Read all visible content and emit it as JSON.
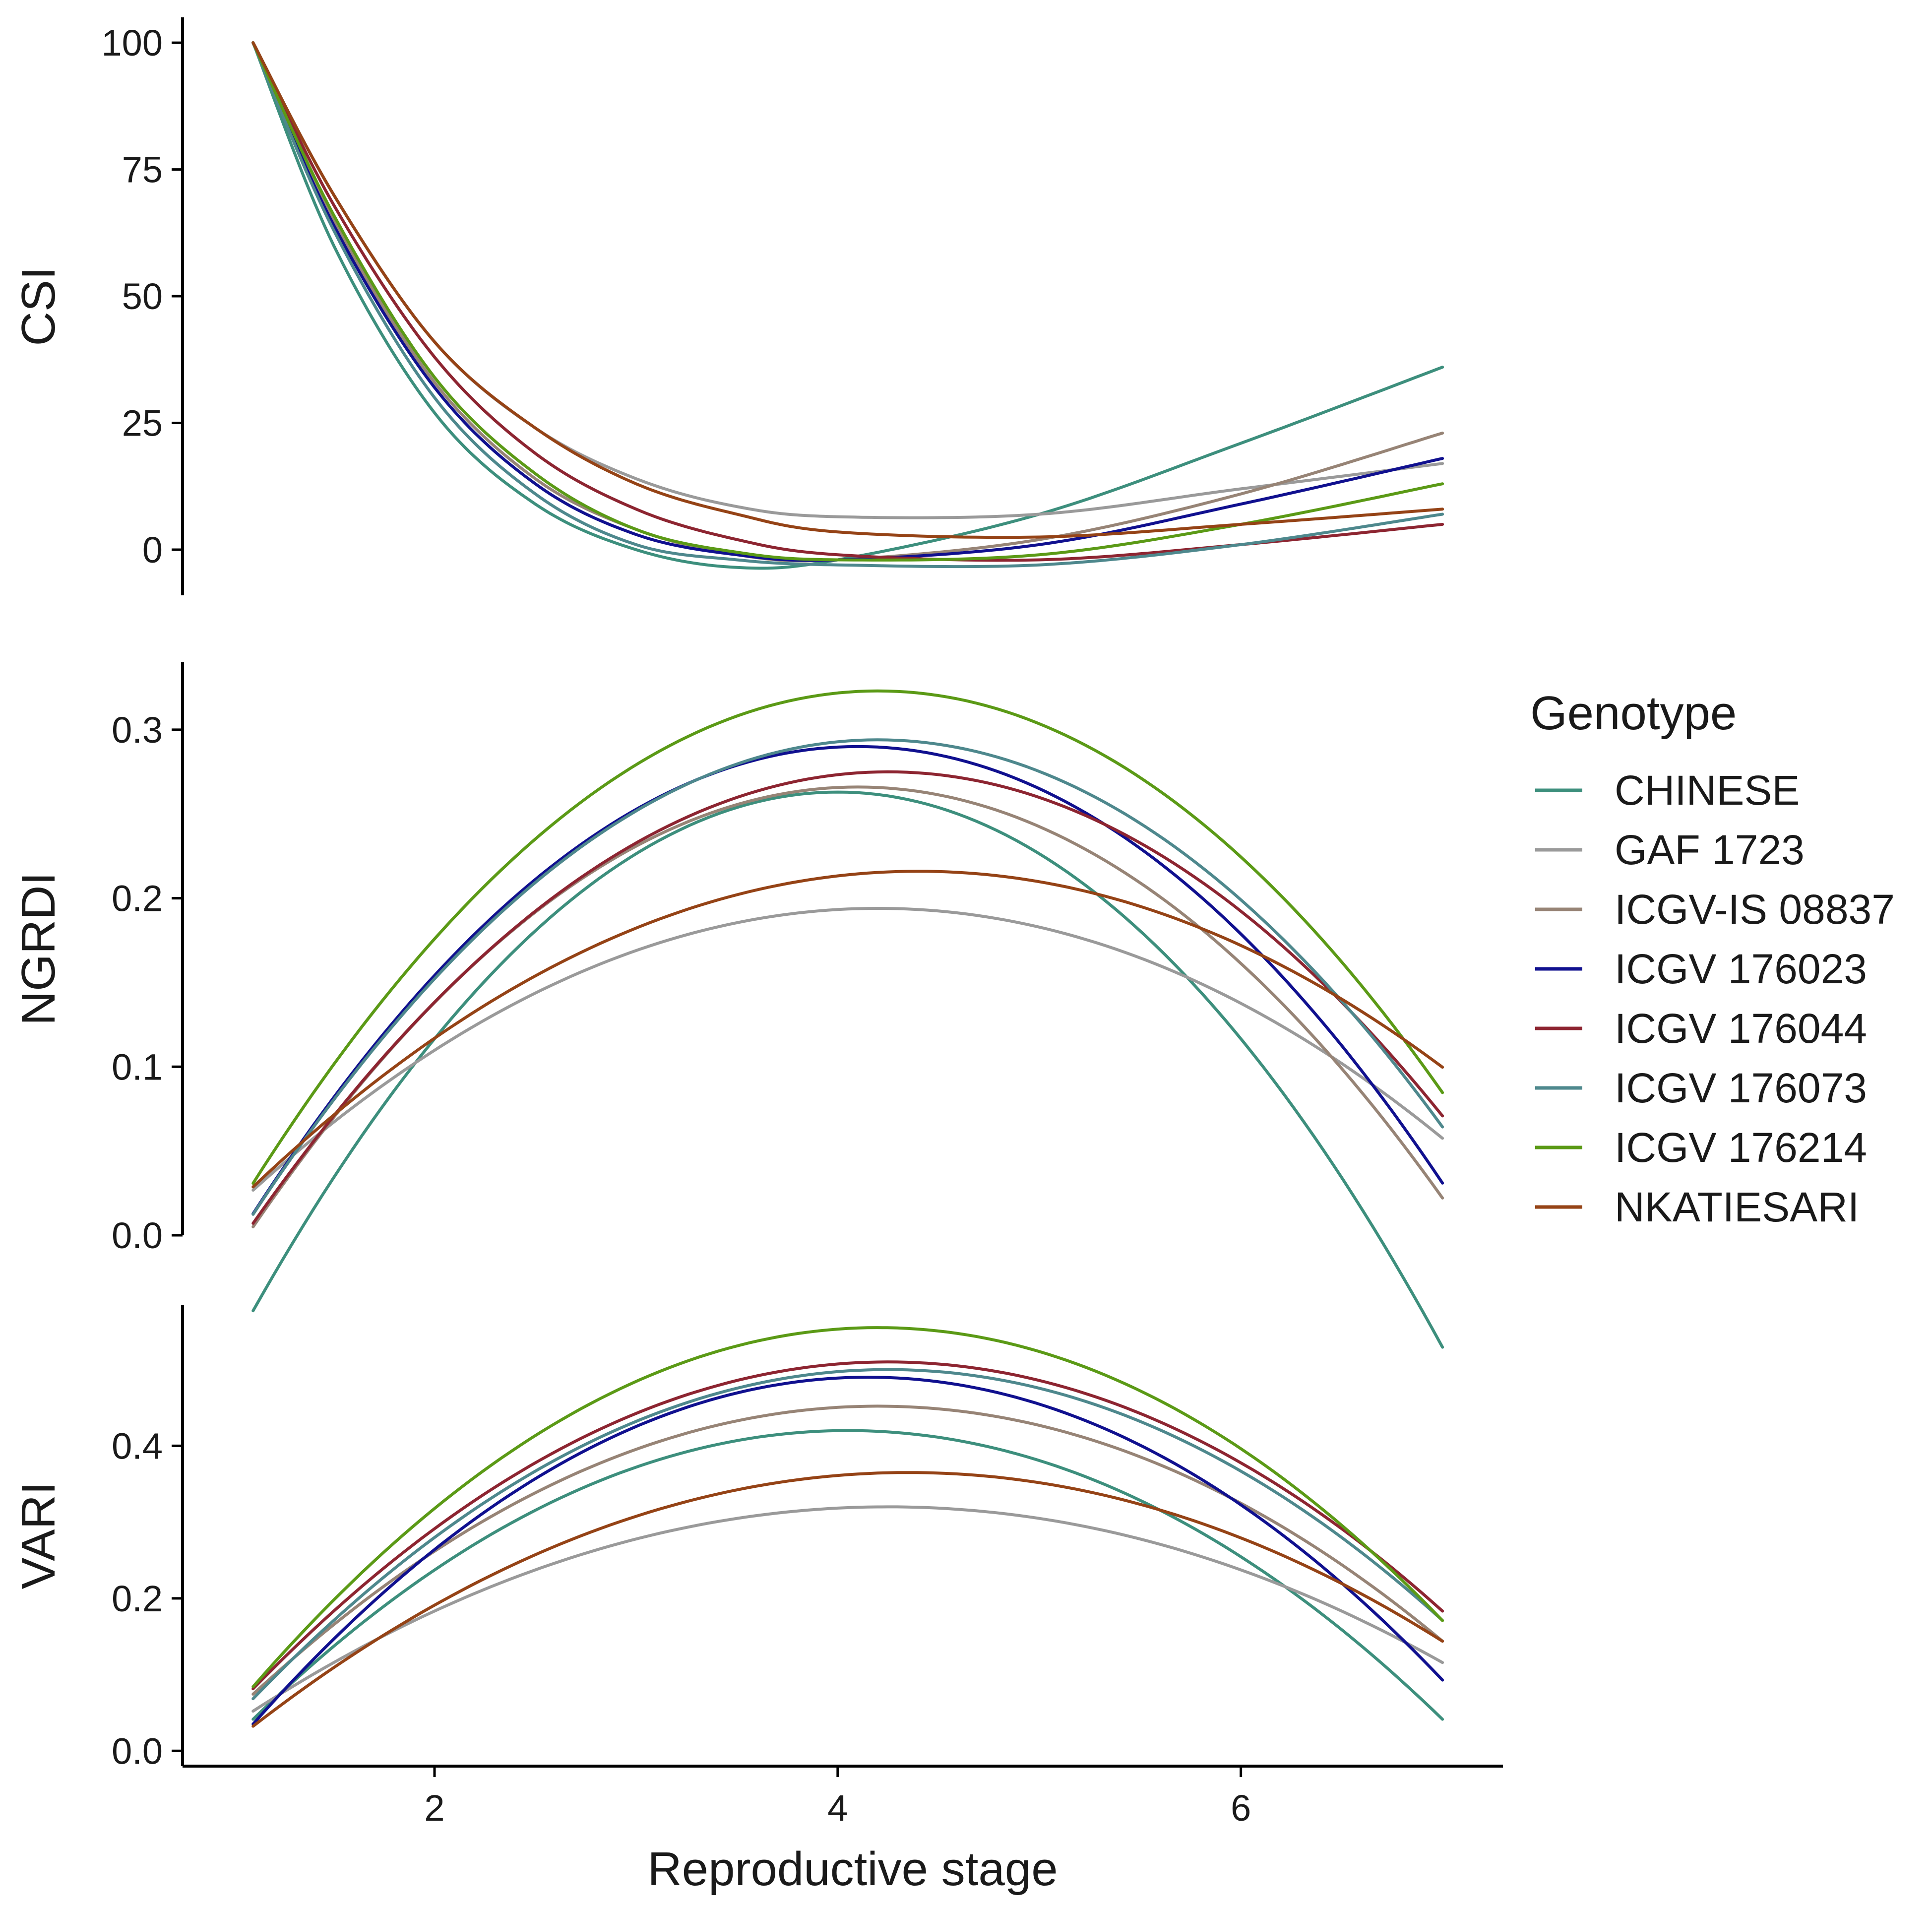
{
  "chart_data": {
    "type": "line",
    "xlabel": "Reproductive stage",
    "xlim": [
      0.75,
      7.3
    ],
    "xticks": [
      2,
      4,
      6
    ],
    "legend": {
      "title": "Genotype",
      "position": "right",
      "entries": [
        "CHINESE",
        "GAF 1723",
        "ICGV-IS 08837",
        "ICGV 176023",
        "ICGV 176044",
        "ICGV 176073",
        "ICGV 176214",
        "NKATIESARI"
      ]
    },
    "series_colors": [
      "#3d8f7d",
      "#9a9a9a",
      "#978476",
      "#10108f",
      "#8d2531",
      "#4e888d",
      "#5b9a16",
      "#954316"
    ],
    "panels": [
      {
        "name": "CSI",
        "ylabel": "CSI",
        "ylim": [
          -9,
          105
        ],
        "yticks": [
          0,
          25,
          50,
          75,
          100
        ],
        "ytick_labels": [
          "0",
          "25",
          "50",
          "75",
          "100"
        ],
        "series": [
          {
            "name": "CHINESE",
            "x": [
              1.1,
              1.5,
              2.0,
              2.5,
              3.0,
              3.5,
              4.0,
              5.0,
              6.0,
              7.0
            ],
            "values": [
              100,
              60,
              27,
              9,
              0,
              -3.5,
              -2,
              7,
              21,
              36
            ]
          },
          {
            "name": "GAF 1723",
            "x": [
              1.1,
              1.5,
              2.0,
              2.5,
              3.0,
              3.5,
              4.0,
              5.0,
              6.0,
              7.0
            ],
            "values": [
              100,
              70,
              41,
              24,
              14,
              8.5,
              6.5,
              7,
              12,
              17
            ]
          },
          {
            "name": "ICGV-IS 08837",
            "x": [
              1.1,
              1.5,
              2.0,
              2.5,
              3.0,
              3.5,
              4.0,
              5.0,
              6.0,
              7.0
            ],
            "values": [
              100,
              65,
              33,
              14,
              4,
              -1,
              -2,
              2,
              11,
              23
            ]
          },
          {
            "name": "ICGV 176023",
            "x": [
              1.1,
              1.5,
              2.0,
              2.5,
              3.0,
              3.5,
              4.0,
              5.0,
              6.0,
              7.0
            ],
            "values": [
              100,
              64,
              32,
              13,
              3,
              -1,
              -2,
              1,
              9,
              18
            ]
          },
          {
            "name": "ICGV 176044",
            "x": [
              1.1,
              1.5,
              2.0,
              2.5,
              3.0,
              3.5,
              4.0,
              5.0,
              6.0,
              7.0
            ],
            "values": [
              100,
              68,
              38,
              19,
              8,
              2,
              -1,
              -2,
              1,
              5
            ]
          },
          {
            "name": "ICGV 176073",
            "x": [
              1.1,
              1.5,
              2.0,
              2.5,
              3.0,
              3.5,
              4.0,
              5.0,
              6.0,
              7.0
            ],
            "values": [
              100,
              63,
              30,
              11,
              1,
              -2,
              -3,
              -3,
              1,
              7
            ]
          },
          {
            "name": "ICGV 176214",
            "x": [
              1.1,
              1.5,
              2.0,
              2.5,
              3.0,
              3.5,
              4.0,
              5.0,
              6.0,
              7.0
            ],
            "values": [
              100,
              66,
              34,
              15,
              4,
              -0.5,
              -2,
              -1,
              5,
              13
            ]
          },
          {
            "name": "NKATIESARI",
            "x": [
              1.1,
              1.5,
              2.0,
              2.5,
              3.0,
              3.5,
              4.0,
              5.0,
              6.0,
              7.0
            ],
            "values": [
              100,
              70,
              41,
              24,
              13,
              7,
              3.5,
              2.5,
              5,
              8
            ]
          }
        ]
      },
      {
        "name": "NGRDI",
        "ylabel": "NGRDI",
        "ylim": [
          0,
          0.34
        ],
        "yticks": [
          0.0,
          0.1,
          0.2,
          0.3
        ],
        "ytick_labels": [
          "0.0",
          "0.1",
          "0.2",
          "0.3"
        ],
        "series": [
          {
            "name": "CHINESE",
            "a": -0.0366,
            "h": 4.0,
            "k": 0.263
          },
          {
            "name": "GAF 1723",
            "a": -0.0174,
            "h": 4.2,
            "k": 0.194
          },
          {
            "name": "ICGV-IS 08837",
            "a": -0.029,
            "h": 4.1,
            "k": 0.266
          },
          {
            "name": "ICGV 176023",
            "a": -0.0308,
            "h": 4.1,
            "k": 0.29
          },
          {
            "name": "ICGV 176044",
            "a": -0.027,
            "h": 4.25,
            "k": 0.275
          },
          {
            "name": "ICGV 176073",
            "a": -0.0293,
            "h": 4.2,
            "k": 0.294
          },
          {
            "name": "ICGV 176214",
            "a": -0.0304,
            "h": 4.2,
            "k": 0.323
          },
          {
            "name": "NKATIESARI",
            "a": -0.0172,
            "h": 4.4,
            "k": 0.216
          }
        ]
      },
      {
        "name": "VARI",
        "ylabel": "VARI",
        "ylim": [
          -0.02,
          0.585
        ],
        "yticks": [
          0.0,
          0.2,
          0.4
        ],
        "ytick_labels": [
          "0.0",
          "0.2",
          "0.4"
        ],
        "series": [
          {
            "name": "CHINESE",
            "a": -0.0435,
            "h": 4.05,
            "k": 0.42
          },
          {
            "name": "GAF 1723",
            "a": -0.027,
            "h": 4.25,
            "k": 0.32
          },
          {
            "name": "ICGV-IS 08837",
            "a": -0.0393,
            "h": 4.2,
            "k": 0.452
          },
          {
            "name": "ICGV 176023",
            "a": -0.0489,
            "h": 4.15,
            "k": 0.49
          },
          {
            "name": "ICGV 176044",
            "a": -0.0432,
            "h": 4.25,
            "k": 0.51
          },
          {
            "name": "ICGV 176073",
            "a": -0.0435,
            "h": 4.25,
            "k": 0.5
          },
          {
            "name": "ICGV 176214",
            "a": -0.049,
            "h": 4.2,
            "k": 0.555
          },
          {
            "name": "NKATIESARI",
            "a": -0.0315,
            "h": 4.35,
            "k": 0.365
          }
        ]
      }
    ]
  }
}
